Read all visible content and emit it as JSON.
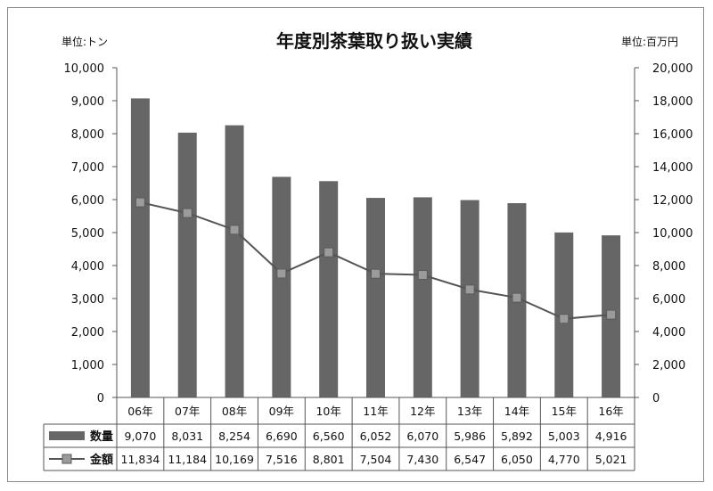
{
  "chart_data": {
    "type": "bar",
    "title": "年度別茶葉取り扱い実績",
    "left_unit": "単位:トン",
    "right_unit": "単位:百万円",
    "categories": [
      "06年",
      "07年",
      "08年",
      "09年",
      "10年",
      "11年",
      "12年",
      "13年",
      "14年",
      "15年",
      "16年"
    ],
    "series": [
      {
        "name": "数量",
        "type": "bar",
        "axis": "left",
        "color": "#666666",
        "values": [
          9070,
          8031,
          8254,
          6690,
          6560,
          6052,
          6070,
          5986,
          5892,
          5003,
          4916
        ],
        "labels": [
          "9,070",
          "8,031",
          "8,254",
          "6,690",
          "6,560",
          "6,052",
          "6,070",
          "5,986",
          "5,892",
          "5,003",
          "4,916"
        ]
      },
      {
        "name": "金額",
        "type": "line",
        "axis": "right",
        "color": "#555555",
        "marker_color": "#9b9b9b",
        "values": [
          11834,
          11184,
          10169,
          7516,
          8801,
          7504,
          7430,
          6547,
          6050,
          4770,
          5021
        ],
        "labels": [
          "11,834",
          "11,184",
          "10,169",
          "7,516",
          "8,801",
          "7,504",
          "7,430",
          "6,547",
          "6,050",
          "4,770",
          "5,021"
        ]
      }
    ],
    "y_left": {
      "range": [
        0,
        10000
      ],
      "ticks": [
        "0",
        "1,000",
        "2,000",
        "3,000",
        "4,000",
        "5,000",
        "6,000",
        "7,000",
        "8,000",
        "9,000",
        "10,000"
      ]
    },
    "y_right": {
      "range": [
        0,
        20000
      ],
      "ticks": [
        "0",
        "2,000",
        "4,000",
        "6,000",
        "8,000",
        "10,000",
        "12,000",
        "14,000",
        "16,000",
        "18,000",
        "20,000"
      ]
    },
    "grid": false,
    "legend": "data-table"
  }
}
